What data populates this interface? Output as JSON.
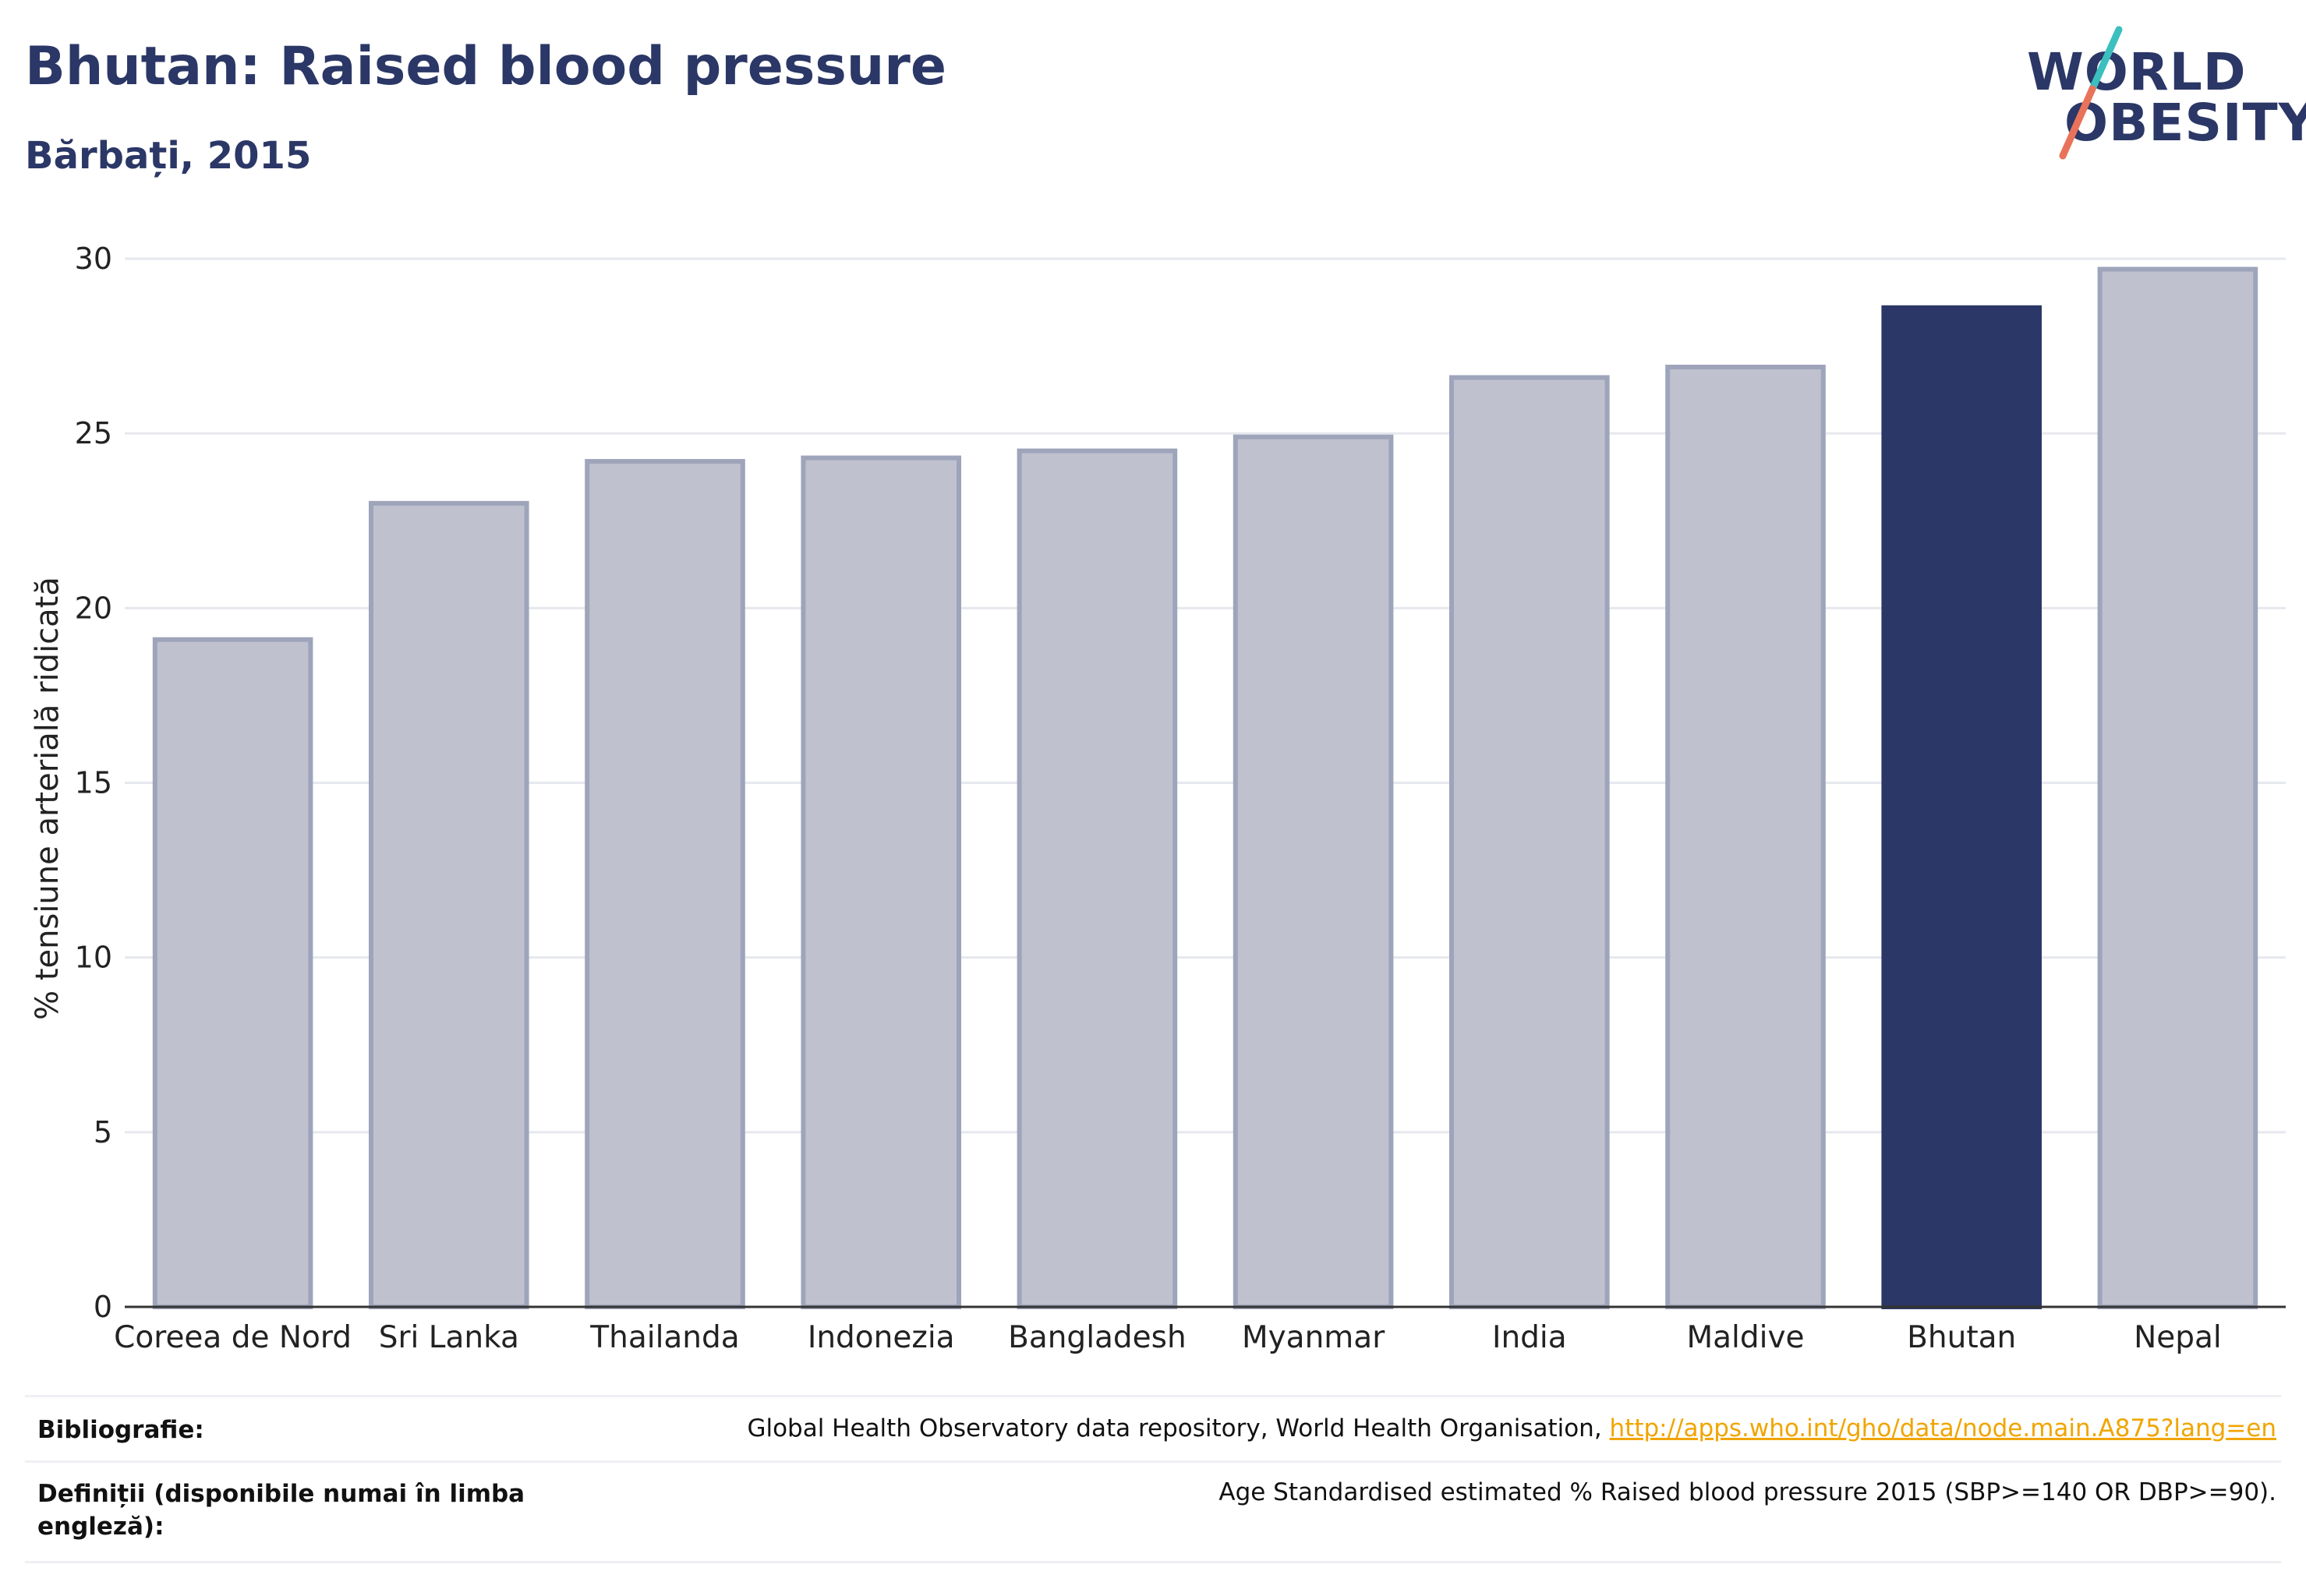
{
  "header": {
    "title": "Bhutan: Raised blood pressure",
    "subtitle": "Bărbați, 2015"
  },
  "logo": {
    "line1": "WORLD",
    "line2": "OBESITY",
    "colors": {
      "text": "#2b3766",
      "slash_top": "#3bbfbf",
      "slash_bottom": "#e8735a"
    }
  },
  "colors": {
    "highlight": "#2b3766",
    "bar": "#bfc2ce",
    "bar_stroke": "#9ea4ba",
    "grid": "#e6e8ee",
    "axis": "#333333"
  },
  "chart_data": {
    "type": "bar",
    "title": "Bhutan: Raised blood pressure",
    "subtitle": "Bărbați, 2015",
    "xlabel": "",
    "ylabel": "% tensiune arterială ridicată",
    "ylim": [
      0,
      30
    ],
    "yticks": [
      0,
      5,
      10,
      15,
      20,
      25,
      30
    ],
    "grid": true,
    "categories": [
      "Coreea de Nord",
      "Sri Lanka",
      "Thailanda",
      "Indonezia",
      "Bangladesh",
      "Myanmar",
      "India",
      "Maldive",
      "Bhutan",
      "Nepal"
    ],
    "values": [
      19.1,
      23.0,
      24.2,
      24.3,
      24.5,
      24.9,
      26.6,
      26.9,
      28.6,
      29.7
    ],
    "highlight": "Bhutan"
  },
  "footer": {
    "bibliography_label": "Bibliografie:",
    "bibliography_text": "Global Health Observatory data repository, World Health Organisation,",
    "bibliography_link": "http://apps.who.int/gho/data/node.main.A875?lang=en",
    "definitions_label": "Definiții (disponibile numai în limba engleză):",
    "definitions_text": "Age Standardised estimated % Raised blood pressure 2015 (SBP>=140 OR DBP>=90)."
  }
}
